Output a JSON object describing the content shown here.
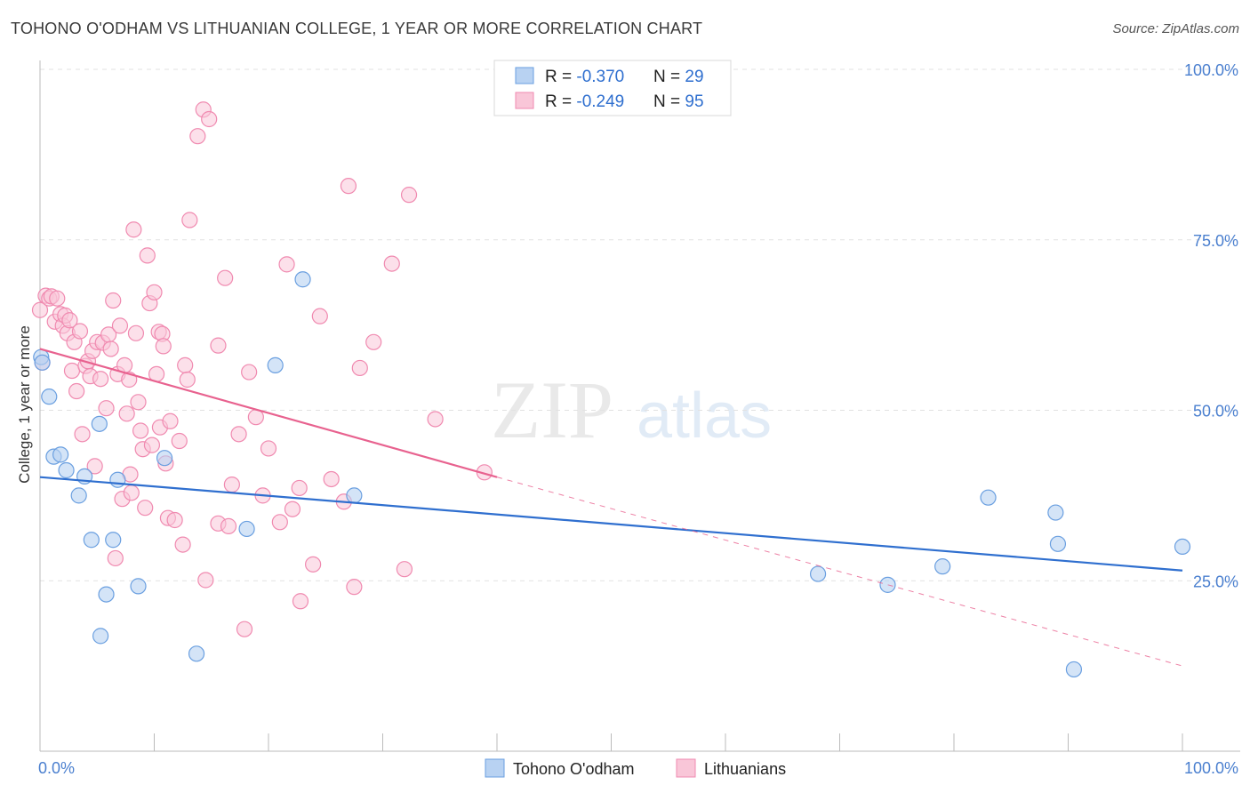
{
  "header": {
    "title": "TOHONO O'ODHAM VS LITHUANIAN COLLEGE, 1 YEAR OR MORE CORRELATION CHART",
    "source": "Source: ZipAtlas.com"
  },
  "watermark": {
    "zip": "ZIP",
    "atlas": "atlas"
  },
  "legend_top": [
    {
      "r_label": "R = ",
      "r_value": "-0.370",
      "n_label": "N = ",
      "n_value": "29"
    },
    {
      "r_label": "R = ",
      "r_value": "-0.249",
      "n_label": "N = ",
      "n_value": "95"
    }
  ],
  "colors": {
    "blue": "#6a9fe0",
    "blue_fill": "#b8d2f2",
    "blue_line": "#2f6fcf",
    "pink": "#f08ab0",
    "pink_fill": "#f9c6d8",
    "pink_line": "#e8628f",
    "tick_label": "#4a7fcf",
    "grid": "#e2e2e2"
  },
  "chart_data": {
    "type": "scatter",
    "ylabel": "College, 1 year or more",
    "xlim": [
      0,
      100
    ],
    "ylim": [
      0,
      100
    ],
    "x_tick_labels": [
      "0.0%",
      "100.0%"
    ],
    "y_ticks": [
      25,
      50,
      75,
      100
    ],
    "y_tick_labels": [
      "25.0%",
      "50.0%",
      "75.0%",
      "100.0%"
    ],
    "grid": true,
    "legend_position": "bottom-center",
    "series": [
      {
        "name": "Tohono O'odham",
        "color": "#6a9fe0",
        "trend": {
          "x": [
            0,
            100
          ],
          "y": [
            40.2,
            26.5
          ],
          "dashed_to": null
        },
        "points": [
          [
            0.1,
            57.8
          ],
          [
            0.8,
            52.0
          ],
          [
            1.2,
            43.2
          ],
          [
            1.8,
            43.5
          ],
          [
            2.3,
            41.2
          ],
          [
            3.4,
            37.5
          ],
          [
            3.9,
            40.3
          ],
          [
            4.5,
            31.0
          ],
          [
            5.2,
            48.0
          ],
          [
            5.3,
            16.9
          ],
          [
            5.8,
            23.0
          ],
          [
            6.4,
            31.0
          ],
          [
            6.8,
            39.8
          ],
          [
            8.6,
            24.2
          ],
          [
            10.9,
            43.0
          ],
          [
            13.7,
            14.3
          ],
          [
            18.1,
            32.6
          ],
          [
            20.6,
            56.6
          ],
          [
            23.0,
            69.2
          ],
          [
            27.5,
            37.5
          ],
          [
            68.1,
            26.0
          ],
          [
            74.2,
            24.4
          ],
          [
            79.0,
            27.1
          ],
          [
            83.0,
            37.2
          ],
          [
            88.9,
            35.0
          ],
          [
            89.1,
            30.4
          ],
          [
            90.5,
            12.0
          ],
          [
            100.0,
            30.0
          ],
          [
            0.2,
            57.0
          ]
        ]
      },
      {
        "name": "Lithuanians",
        "color": "#f08ab0",
        "trend": {
          "x": [
            0,
            40
          ],
          "y": [
            59.0,
            40.2
          ],
          "dashed_to": [
            100,
            12.5
          ]
        },
        "points": [
          [
            0.0,
            64.7
          ],
          [
            0.2,
            57.0
          ],
          [
            0.5,
            66.8
          ],
          [
            0.8,
            66.4
          ],
          [
            1.0,
            66.7
          ],
          [
            1.3,
            63.0
          ],
          [
            1.5,
            66.4
          ],
          [
            1.8,
            64.1
          ],
          [
            2.0,
            62.4
          ],
          [
            2.2,
            63.9
          ],
          [
            2.4,
            61.3
          ],
          [
            2.6,
            63.2
          ],
          [
            2.8,
            55.8
          ],
          [
            3.0,
            60.0
          ],
          [
            3.2,
            52.8
          ],
          [
            3.5,
            61.6
          ],
          [
            3.7,
            46.5
          ],
          [
            4.0,
            56.5
          ],
          [
            4.2,
            57.2
          ],
          [
            4.4,
            55.0
          ],
          [
            4.6,
            58.7
          ],
          [
            4.8,
            41.8
          ],
          [
            5.0,
            60.0
          ],
          [
            5.3,
            54.6
          ],
          [
            5.5,
            59.9
          ],
          [
            5.8,
            50.3
          ],
          [
            6.0,
            61.1
          ],
          [
            6.2,
            59.0
          ],
          [
            6.4,
            66.1
          ],
          [
            6.6,
            28.3
          ],
          [
            6.8,
            55.3
          ],
          [
            7.0,
            62.4
          ],
          [
            7.2,
            37.0
          ],
          [
            7.4,
            56.6
          ],
          [
            7.6,
            49.5
          ],
          [
            7.8,
            54.5
          ],
          [
            7.9,
            40.6
          ],
          [
            8.0,
            37.9
          ],
          [
            8.2,
            76.5
          ],
          [
            8.4,
            61.3
          ],
          [
            8.6,
            51.2
          ],
          [
            8.8,
            47.0
          ],
          [
            9.0,
            44.3
          ],
          [
            9.2,
            35.7
          ],
          [
            9.4,
            72.7
          ],
          [
            9.6,
            65.7
          ],
          [
            9.8,
            44.9
          ],
          [
            10.0,
            67.3
          ],
          [
            10.2,
            55.3
          ],
          [
            10.4,
            61.5
          ],
          [
            10.5,
            47.5
          ],
          [
            10.7,
            61.2
          ],
          [
            10.8,
            59.4
          ],
          [
            11.0,
            42.2
          ],
          [
            11.2,
            34.2
          ],
          [
            11.4,
            48.4
          ],
          [
            11.8,
            33.9
          ],
          [
            12.2,
            45.5
          ],
          [
            12.5,
            30.3
          ],
          [
            12.7,
            56.6
          ],
          [
            12.9,
            54.5
          ],
          [
            13.1,
            77.9
          ],
          [
            13.8,
            90.2
          ],
          [
            14.3,
            94.1
          ],
          [
            14.5,
            25.1
          ],
          [
            14.8,
            92.7
          ],
          [
            15.6,
            59.5
          ],
          [
            15.6,
            33.4
          ],
          [
            16.2,
            69.4
          ],
          [
            16.5,
            33.0
          ],
          [
            16.8,
            39.1
          ],
          [
            17.4,
            46.5
          ],
          [
            17.9,
            17.9
          ],
          [
            18.3,
            55.6
          ],
          [
            18.9,
            49.0
          ],
          [
            19.5,
            37.5
          ],
          [
            20.0,
            44.4
          ],
          [
            21.0,
            33.6
          ],
          [
            21.6,
            71.4
          ],
          [
            22.1,
            35.5
          ],
          [
            22.7,
            38.6
          ],
          [
            22.8,
            22.0
          ],
          [
            23.9,
            27.4
          ],
          [
            24.5,
            63.8
          ],
          [
            25.5,
            39.9
          ],
          [
            26.6,
            36.6
          ],
          [
            27.0,
            82.9
          ],
          [
            27.5,
            24.1
          ],
          [
            28.0,
            56.2
          ],
          [
            29.2,
            60.0
          ],
          [
            30.8,
            71.5
          ],
          [
            31.9,
            26.7
          ],
          [
            32.3,
            81.6
          ],
          [
            34.6,
            48.7
          ],
          [
            38.9,
            40.9
          ]
        ]
      }
    ]
  }
}
